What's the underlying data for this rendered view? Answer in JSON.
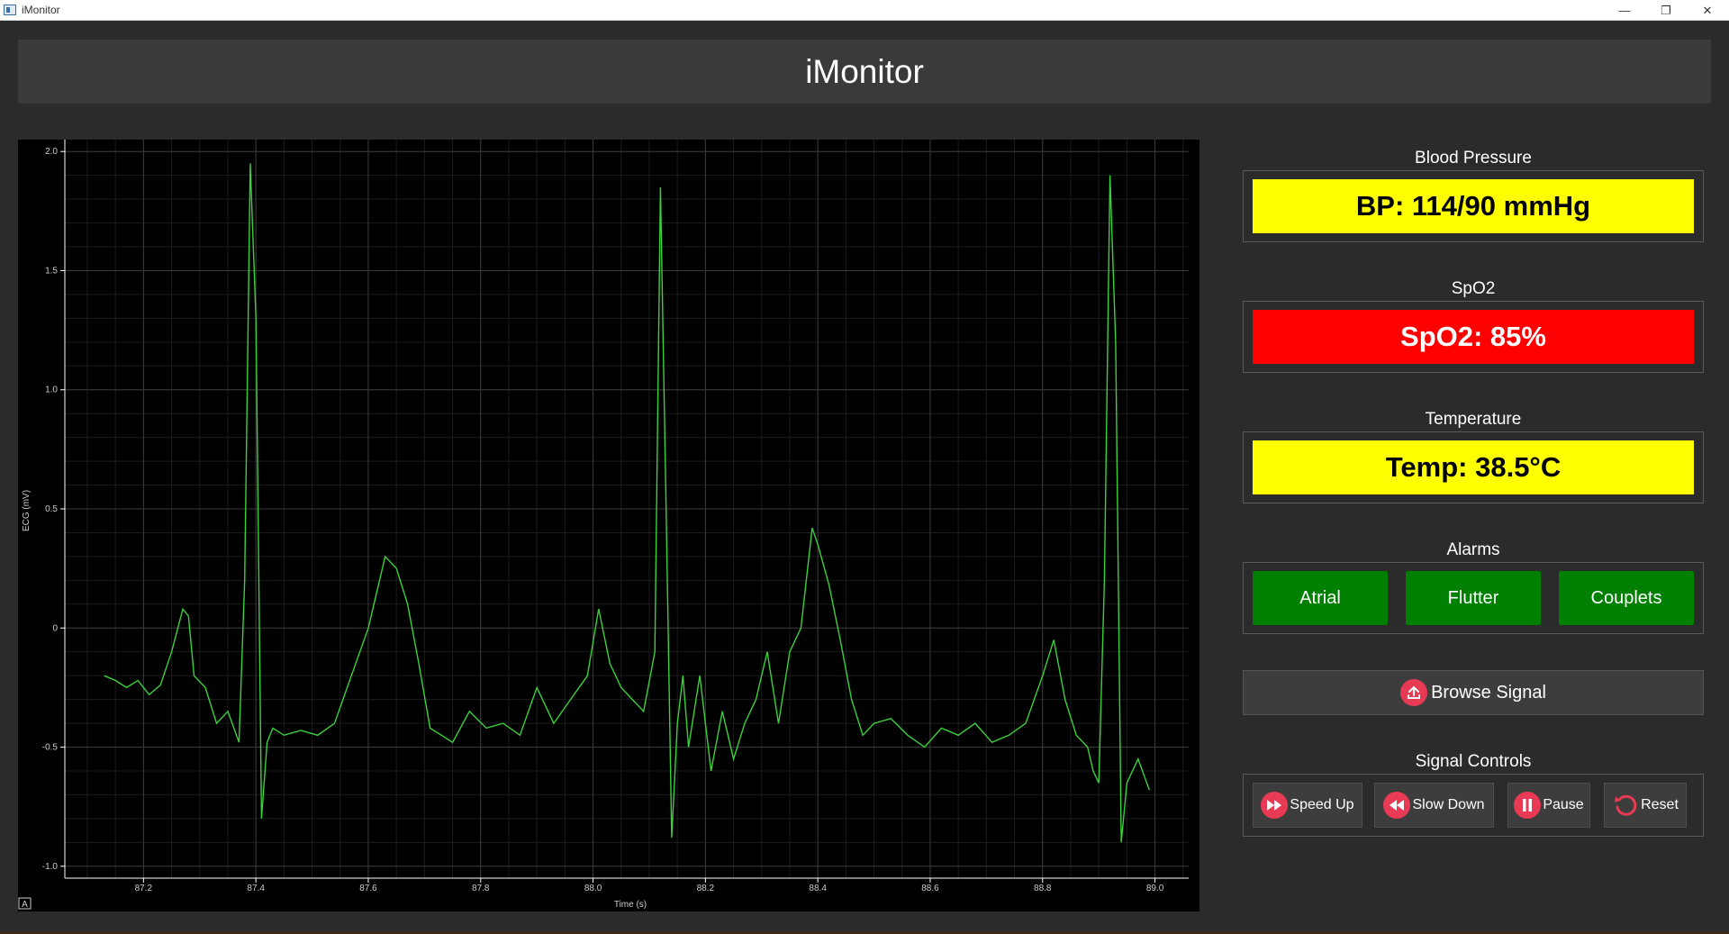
{
  "window": {
    "title": "iMonitor",
    "min_glyph": "—",
    "restore_glyph": "❐",
    "close_glyph": "✕"
  },
  "header": {
    "title": "iMonitor"
  },
  "plot": {
    "ylabel": "ECG (mV)",
    "xlabel": "Time (s)",
    "autoscale_label": "A",
    "line_color": "#3ad13a"
  },
  "chart_data": {
    "type": "line",
    "xlabel": "Time (s)",
    "ylabel": "ECG (mV)",
    "xlim": [
      87.06,
      89.06
    ],
    "ylim": [
      -1.05,
      2.05
    ],
    "x_ticks": [
      "87.2",
      "87.4",
      "87.6",
      "87.8",
      "88.0",
      "88.2",
      "88.4",
      "88.6",
      "88.8",
      "89.0"
    ],
    "y_ticks": [
      "2.0",
      "1.5",
      "1.0",
      "0.5",
      "0",
      "-0.5",
      "-1.0"
    ],
    "grid": true,
    "series": [
      {
        "x": [
          87.13,
          87.15,
          87.17,
          87.19,
          87.21,
          87.23,
          87.25,
          87.27,
          87.28,
          87.29,
          87.31,
          87.33,
          87.35,
          87.37,
          87.38,
          87.39,
          87.4,
          87.41,
          87.42,
          87.43,
          87.45,
          87.48,
          87.51,
          87.54,
          87.57,
          87.6,
          87.63,
          87.65,
          87.67,
          87.69,
          87.71,
          87.73,
          87.75,
          87.78,
          87.81,
          87.84,
          87.87,
          87.9,
          87.93,
          87.96,
          87.99,
          88.01,
          88.03,
          88.05,
          88.07,
          88.09,
          88.11,
          88.12,
          88.13,
          88.14,
          88.15,
          88.16,
          88.17,
          88.19,
          88.21,
          88.23,
          88.25,
          88.27,
          88.29,
          88.31,
          88.33,
          88.35,
          88.37,
          88.39,
          88.4,
          88.42,
          88.44,
          88.46,
          88.48,
          88.5,
          88.53,
          88.56,
          88.59,
          88.62,
          88.65,
          88.68,
          88.71,
          88.74,
          88.77,
          88.8,
          88.82,
          88.84,
          88.86,
          88.88,
          88.89,
          88.9,
          88.91,
          88.92,
          88.93,
          88.94,
          88.95,
          88.97,
          88.99
        ],
        "y": [
          -0.2,
          -0.22,
          -0.25,
          -0.22,
          -0.28,
          -0.24,
          -0.1,
          0.08,
          0.05,
          -0.2,
          -0.25,
          -0.4,
          -0.35,
          -0.48,
          0.2,
          1.95,
          1.3,
          -0.8,
          -0.48,
          -0.42,
          -0.45,
          -0.43,
          -0.45,
          -0.4,
          -0.2,
          0.0,
          0.3,
          0.25,
          0.1,
          -0.15,
          -0.42,
          -0.45,
          -0.48,
          -0.35,
          -0.42,
          -0.4,
          -0.45,
          -0.25,
          -0.4,
          -0.3,
          -0.2,
          0.08,
          -0.15,
          -0.25,
          -0.3,
          -0.35,
          -0.1,
          1.85,
          0.5,
          -0.88,
          -0.4,
          -0.2,
          -0.5,
          -0.2,
          -0.6,
          -0.35,
          -0.55,
          -0.4,
          -0.3,
          -0.1,
          -0.4,
          -0.1,
          0.0,
          0.42,
          0.35,
          0.18,
          -0.05,
          -0.3,
          -0.45,
          -0.4,
          -0.38,
          -0.45,
          -0.5,
          -0.42,
          -0.45,
          -0.4,
          -0.48,
          -0.45,
          -0.4,
          -0.2,
          -0.05,
          -0.3,
          -0.45,
          -0.5,
          -0.6,
          -0.65,
          0.2,
          1.9,
          1.2,
          -0.9,
          -0.65,
          -0.55,
          -0.68
        ]
      }
    ]
  },
  "vitals": {
    "bp": {
      "label": "Blood Pressure",
      "value": "BP: 114/90 mmHg",
      "color": "#ffff00"
    },
    "spo2": {
      "label": "SpO2",
      "value": "SpO2: 85%",
      "color": "#ff0000"
    },
    "temp": {
      "label": "Temperature",
      "value": "Temp: 38.5°C",
      "color": "#ffff00"
    }
  },
  "alarms": {
    "label": "Alarms",
    "color": "#008000",
    "items": [
      "Atrial",
      "Flutter",
      "Couplets"
    ]
  },
  "browse": {
    "label": "Browse Signal",
    "icon": "upload-icon"
  },
  "signal_controls": {
    "label": "Signal Controls",
    "speed_up": "Speed Up",
    "slow_down": "Slow Down",
    "pause": "Pause",
    "reset": "Reset"
  }
}
